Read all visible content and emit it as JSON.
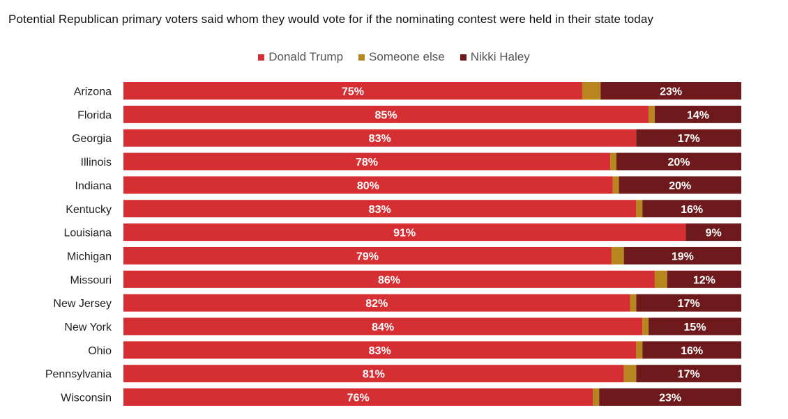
{
  "title": "Potential Republican primary voters said whom they would vote for if the nominating contest were held in their state today",
  "chart_data": {
    "type": "bar",
    "orientation": "horizontal",
    "stacked": true,
    "categories": [
      "Arizona",
      "Florida",
      "Georgia",
      "Illinois",
      "Indiana",
      "Kentucky",
      "Louisiana",
      "Michigan",
      "Missouri",
      "New Jersey",
      "New York",
      "Ohio",
      "Pennsylvania",
      "Wisconsin"
    ],
    "series": [
      {
        "name": "Donald Trump",
        "color": "#d62f33",
        "values": [
          75,
          85,
          83,
          78,
          80,
          83,
          91,
          79,
          86,
          82,
          84,
          83,
          81,
          76
        ]
      },
      {
        "name": "Someone else",
        "color": "#b8861e",
        "values": [
          3,
          1,
          0,
          1,
          1,
          1,
          0,
          2,
          2,
          1,
          1,
          1,
          2,
          1
        ]
      },
      {
        "name": "Nikki Haley",
        "color": "#6e1a1c",
        "values": [
          23,
          14,
          17,
          20,
          20,
          16,
          9,
          19,
          12,
          17,
          15,
          16,
          17,
          23
        ]
      }
    ],
    "labels": [
      [
        "75%",
        "",
        "23%"
      ],
      [
        "85%",
        "",
        "14%"
      ],
      [
        "83%",
        "",
        "17%"
      ],
      [
        "78%",
        "",
        "20%"
      ],
      [
        "80%",
        "",
        "20%"
      ],
      [
        "83%",
        "",
        "16%"
      ],
      [
        "91%",
        "",
        "9%"
      ],
      [
        "79%",
        "",
        "19%"
      ],
      [
        "86%",
        "",
        "12%"
      ],
      [
        "82%",
        "",
        "17%"
      ],
      [
        "84%",
        "",
        "15%"
      ],
      [
        "83%",
        "",
        "16%"
      ],
      [
        "81%",
        "",
        "17%"
      ],
      [
        "76%",
        "",
        "23%"
      ]
    ],
    "label_suffix": "%",
    "legend_position": "top-center",
    "grid": false
  }
}
